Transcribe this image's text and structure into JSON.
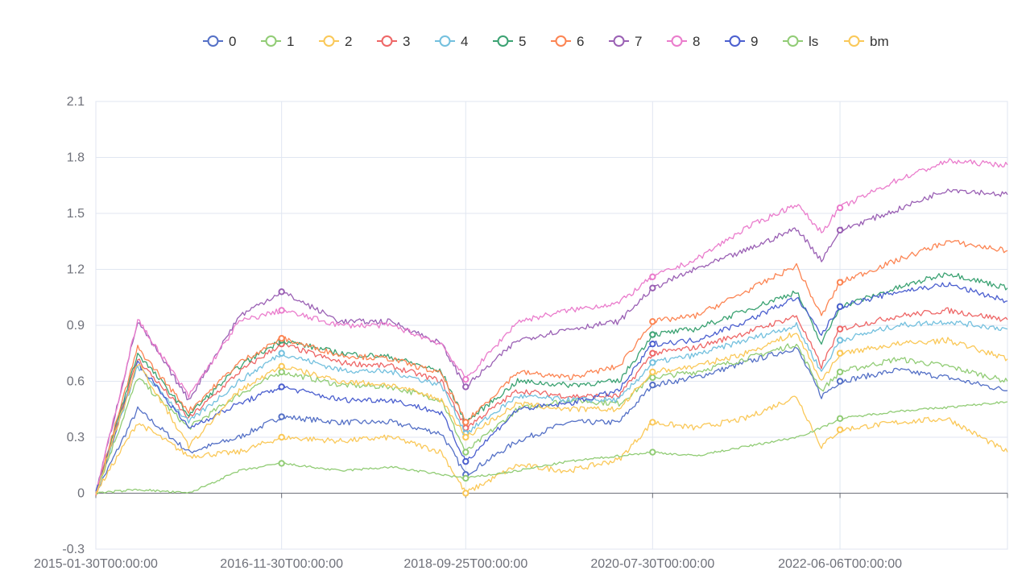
{
  "chart_data": {
    "type": "line",
    "title": "",
    "xlabel": "",
    "ylabel": "",
    "x_tick_labels": [
      "2015-01-30T00:00:00",
      "2016-11-30T00:00:00",
      "2018-09-25T00:00:00",
      "2020-07-30T00:00:00",
      "2022-06-06T00:00:00"
    ],
    "x_range": [
      "2015-01-30",
      "2024-01-31"
    ],
    "y_ticks": [
      "-0.3",
      "0",
      "0.3",
      "0.6",
      "0.9",
      "1.2",
      "1.5",
      "1.8",
      "2.1"
    ],
    "ylim": [
      -0.3,
      2.1
    ],
    "grid": true,
    "legend_position": "top-center",
    "x": [
      "2015-01-30",
      "2015-06-30",
      "2015-12-31",
      "2016-06-30",
      "2016-11-30",
      "2017-06-30",
      "2017-12-31",
      "2018-06-30",
      "2018-09-25",
      "2019-03-31",
      "2019-09-30",
      "2020-03-31",
      "2020-07-30",
      "2020-12-31",
      "2021-06-30",
      "2021-12-31",
      "2022-03-31",
      "2022-06-06",
      "2022-12-31",
      "2023-06-30",
      "2024-01-31"
    ],
    "series": [
      {
        "name": "0",
        "color": "#5470c6",
        "values": [
          0.0,
          0.45,
          0.22,
          0.3,
          0.41,
          0.38,
          0.38,
          0.32,
          0.1,
          0.28,
          0.38,
          0.38,
          0.58,
          0.62,
          0.7,
          0.78,
          0.52,
          0.6,
          0.66,
          0.62,
          0.55
        ]
      },
      {
        "name": "1",
        "color": "#91cc75",
        "values": [
          0.0,
          0.62,
          0.35,
          0.53,
          0.65,
          0.58,
          0.57,
          0.5,
          0.22,
          0.45,
          0.5,
          0.48,
          0.62,
          0.65,
          0.72,
          0.8,
          0.55,
          0.65,
          0.72,
          0.68,
          0.6
        ]
      },
      {
        "name": "2",
        "color": "#fac858",
        "values": [
          0.0,
          0.38,
          0.2,
          0.22,
          0.3,
          0.28,
          0.3,
          0.22,
          0.0,
          0.15,
          0.12,
          0.18,
          0.38,
          0.35,
          0.4,
          0.52,
          0.25,
          0.34,
          0.38,
          0.4,
          0.22
        ]
      },
      {
        "name": "3",
        "color": "#ee6666",
        "values": [
          0.0,
          0.72,
          0.4,
          0.65,
          0.8,
          0.7,
          0.68,
          0.6,
          0.35,
          0.55,
          0.52,
          0.52,
          0.75,
          0.78,
          0.86,
          0.95,
          0.68,
          0.88,
          0.95,
          0.98,
          0.93
        ]
      },
      {
        "name": "4",
        "color": "#73c0de",
        "values": [
          0.0,
          0.68,
          0.38,
          0.6,
          0.75,
          0.66,
          0.65,
          0.58,
          0.32,
          0.52,
          0.5,
          0.5,
          0.7,
          0.74,
          0.82,
          0.9,
          0.65,
          0.82,
          0.9,
          0.92,
          0.88
        ]
      },
      {
        "name": "5",
        "color": "#3ba272",
        "values": [
          0.0,
          0.75,
          0.42,
          0.68,
          0.82,
          0.75,
          0.73,
          0.65,
          0.38,
          0.6,
          0.58,
          0.6,
          0.85,
          0.88,
          0.98,
          1.08,
          0.8,
          1.0,
          1.1,
          1.18,
          1.1
        ]
      },
      {
        "name": "6",
        "color": "#fc8452",
        "values": [
          0.0,
          0.78,
          0.44,
          0.7,
          0.83,
          0.74,
          0.72,
          0.64,
          0.38,
          0.65,
          0.62,
          0.68,
          0.92,
          0.95,
          1.08,
          1.22,
          0.95,
          1.13,
          1.25,
          1.35,
          1.3
        ]
      },
      {
        "name": "7",
        "color": "#9a60b4",
        "values": [
          0.0,
          0.92,
          0.5,
          0.95,
          1.08,
          0.92,
          0.92,
          0.8,
          0.57,
          0.82,
          0.88,
          0.92,
          1.1,
          1.2,
          1.3,
          1.42,
          1.25,
          1.41,
          1.52,
          1.63,
          1.6
        ]
      },
      {
        "name": "8",
        "color": "#ea7ccc",
        "values": [
          0.0,
          0.93,
          0.52,
          0.92,
          0.98,
          0.9,
          0.9,
          0.8,
          0.61,
          0.92,
          0.98,
          1.02,
          1.16,
          1.25,
          1.42,
          1.55,
          1.4,
          1.53,
          1.68,
          1.78,
          1.76
        ]
      },
      {
        "name": "9",
        "color": "#4b5fcf",
        "values": [
          0.0,
          0.7,
          0.35,
          0.48,
          0.57,
          0.5,
          0.5,
          0.43,
          0.17,
          0.45,
          0.48,
          0.55,
          0.8,
          0.82,
          0.92,
          1.05,
          0.85,
          1.0,
          1.08,
          1.12,
          1.03
        ]
      },
      {
        "name": "ls",
        "color": "#91cc75",
        "values": [
          0.0,
          0.02,
          0.0,
          0.12,
          0.16,
          0.12,
          0.14,
          0.1,
          0.08,
          0.12,
          0.17,
          0.2,
          0.22,
          0.2,
          0.25,
          0.3,
          0.35,
          0.4,
          0.44,
          0.46,
          0.49
        ]
      },
      {
        "name": "bm",
        "color": "#fac858",
        "values": [
          0.0,
          0.7,
          0.25,
          0.55,
          0.68,
          0.6,
          0.58,
          0.5,
          0.3,
          0.48,
          0.45,
          0.45,
          0.65,
          0.68,
          0.75,
          0.86,
          0.6,
          0.75,
          0.8,
          0.82,
          0.72
        ]
      }
    ]
  }
}
